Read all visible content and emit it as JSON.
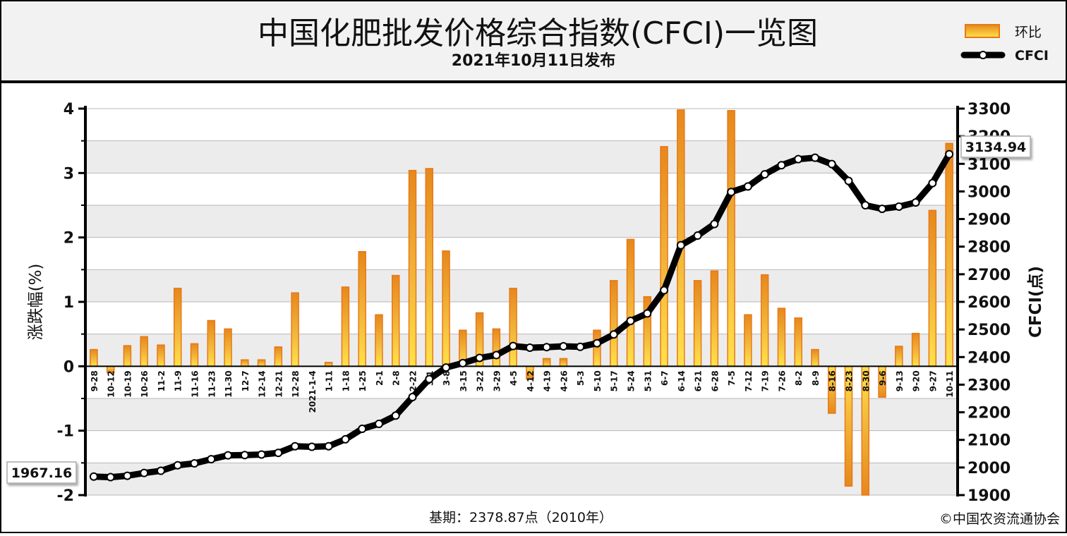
{
  "header": {
    "title": "中国化肥批发价格综合指数(CFCI)一览图",
    "subtitle": "2021年10月11日发布"
  },
  "legend": {
    "bar_label": "环比",
    "line_label": "CFCI",
    "placement": "top-right"
  },
  "axes": {
    "left_label": "涨跌幅(%)",
    "right_label": "CFCI(点)"
  },
  "annotations": {
    "start_value": "1967.16",
    "end_value": "3134.94"
  },
  "footer": {
    "base_period": "基期：2378.87点（2010年）",
    "copyright": "©中国农资流通协会"
  },
  "colors": {
    "bar_fill": "#f5c842",
    "bar_stroke": "#e8781a",
    "line": "#000000",
    "header_bg": "#f2f2f2",
    "band": "#ececec"
  },
  "chart_data": {
    "type": "bar+line",
    "categories": [
      "9-28",
      "10-12",
      "10-19",
      "10-26",
      "11-2",
      "11-9",
      "11-16",
      "11-23",
      "11-30",
      "12-7",
      "12-14",
      "12-21",
      "12-28",
      "2021-1-4",
      "1-11",
      "1-18",
      "1-25",
      "2-1",
      "2-8",
      "2-22",
      "3-1",
      "3-8",
      "3-15",
      "3-22",
      "3-29",
      "4-5",
      "4-12",
      "4-19",
      "4-26",
      "5-3",
      "5-10",
      "5-17",
      "5-24",
      "5-31",
      "6-7",
      "6-14",
      "6-21",
      "6-28",
      "7-5",
      "7-12",
      "7-19",
      "7-26",
      "8-2",
      "8-9",
      "8-16",
      "8-23",
      "8-30",
      "9-6",
      "9-13",
      "9-20",
      "9-27",
      "10-11"
    ],
    "grid": true,
    "left_axis": {
      "label": "涨跌幅(%)",
      "ylim": [
        -2,
        4
      ],
      "ticks": [
        -2,
        -1,
        0,
        1,
        2,
        3,
        4
      ]
    },
    "right_axis": {
      "label": "CFCI(点)",
      "ylim": [
        1900,
        3300
      ],
      "ticks": [
        1900,
        2000,
        2100,
        2200,
        2300,
        2400,
        2500,
        2600,
        2700,
        2800,
        2900,
        3000,
        3100,
        3200,
        3300
      ]
    },
    "series": [
      {
        "name": "环比",
        "kind": "bar",
        "axis": "left",
        "values": [
          0.26,
          -0.1,
          0.32,
          0.46,
          0.33,
          1.21,
          0.35,
          0.71,
          0.58,
          0.1,
          0.1,
          0.3,
          1.14,
          0.0,
          0.06,
          1.23,
          1.78,
          0.8,
          1.41,
          3.04,
          3.07,
          1.79,
          0.56,
          0.83,
          0.58,
          1.21,
          -0.2,
          0.12,
          0.12,
          0.0,
          0.56,
          1.33,
          1.97,
          1.08,
          3.41,
          3.98,
          1.33,
          1.48,
          3.97,
          0.8,
          1.42,
          0.9,
          0.75,
          0.26,
          -0.73,
          -1.86,
          -2.0,
          -0.48,
          0.31,
          0.51,
          2.42,
          3.46
        ]
      },
      {
        "name": "CFCI",
        "kind": "line",
        "axis": "right",
        "values": [
          1967.16,
          1965,
          1970,
          1980,
          1988,
          2008,
          2015,
          2030,
          2044,
          2045,
          2047,
          2053,
          2077,
          2075,
          2077,
          2102,
          2140,
          2158,
          2188,
          2255,
          2320,
          2362,
          2378,
          2397,
          2407,
          2440,
          2434,
          2436,
          2439,
          2437,
          2450,
          2482,
          2531,
          2558,
          2642,
          2805,
          2840,
          2882,
          2998,
          3018,
          3062,
          3095,
          3117,
          3122,
          3099,
          3038,
          2950,
          2937,
          2945,
          2960,
          3030,
          3134.94
        ]
      }
    ]
  }
}
